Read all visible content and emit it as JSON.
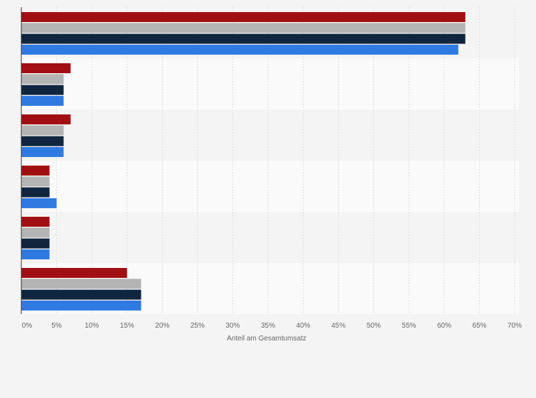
{
  "chart_data": {
    "type": "bar",
    "orientation": "horizontal",
    "title": "",
    "xlabel": "Anteil am Gesamtumsatz",
    "ylabel": "",
    "xlim": [
      0,
      70
    ],
    "x_tick_labels": [
      "0%",
      "5%",
      "10%",
      "15%",
      "20%",
      "25%",
      "30%",
      "35%",
      "40%",
      "45%",
      "50%",
      "55%",
      "60%",
      "65%",
      "70%"
    ],
    "grid": "vertical",
    "legend": "none",
    "category_count": 6,
    "series": [
      {
        "color": "#a10f12",
        "values": [
          63,
          7,
          7,
          4,
          4,
          15
        ]
      },
      {
        "color": "#b4b4b4",
        "values": [
          63,
          6,
          6,
          4,
          4,
          17
        ]
      },
      {
        "color": "#10263f",
        "values": [
          63,
          6,
          6,
          4,
          4,
          17
        ]
      },
      {
        "color": "#2f7ae0",
        "values": [
          62,
          6,
          6,
          5,
          4,
          17
        ]
      }
    ]
  }
}
